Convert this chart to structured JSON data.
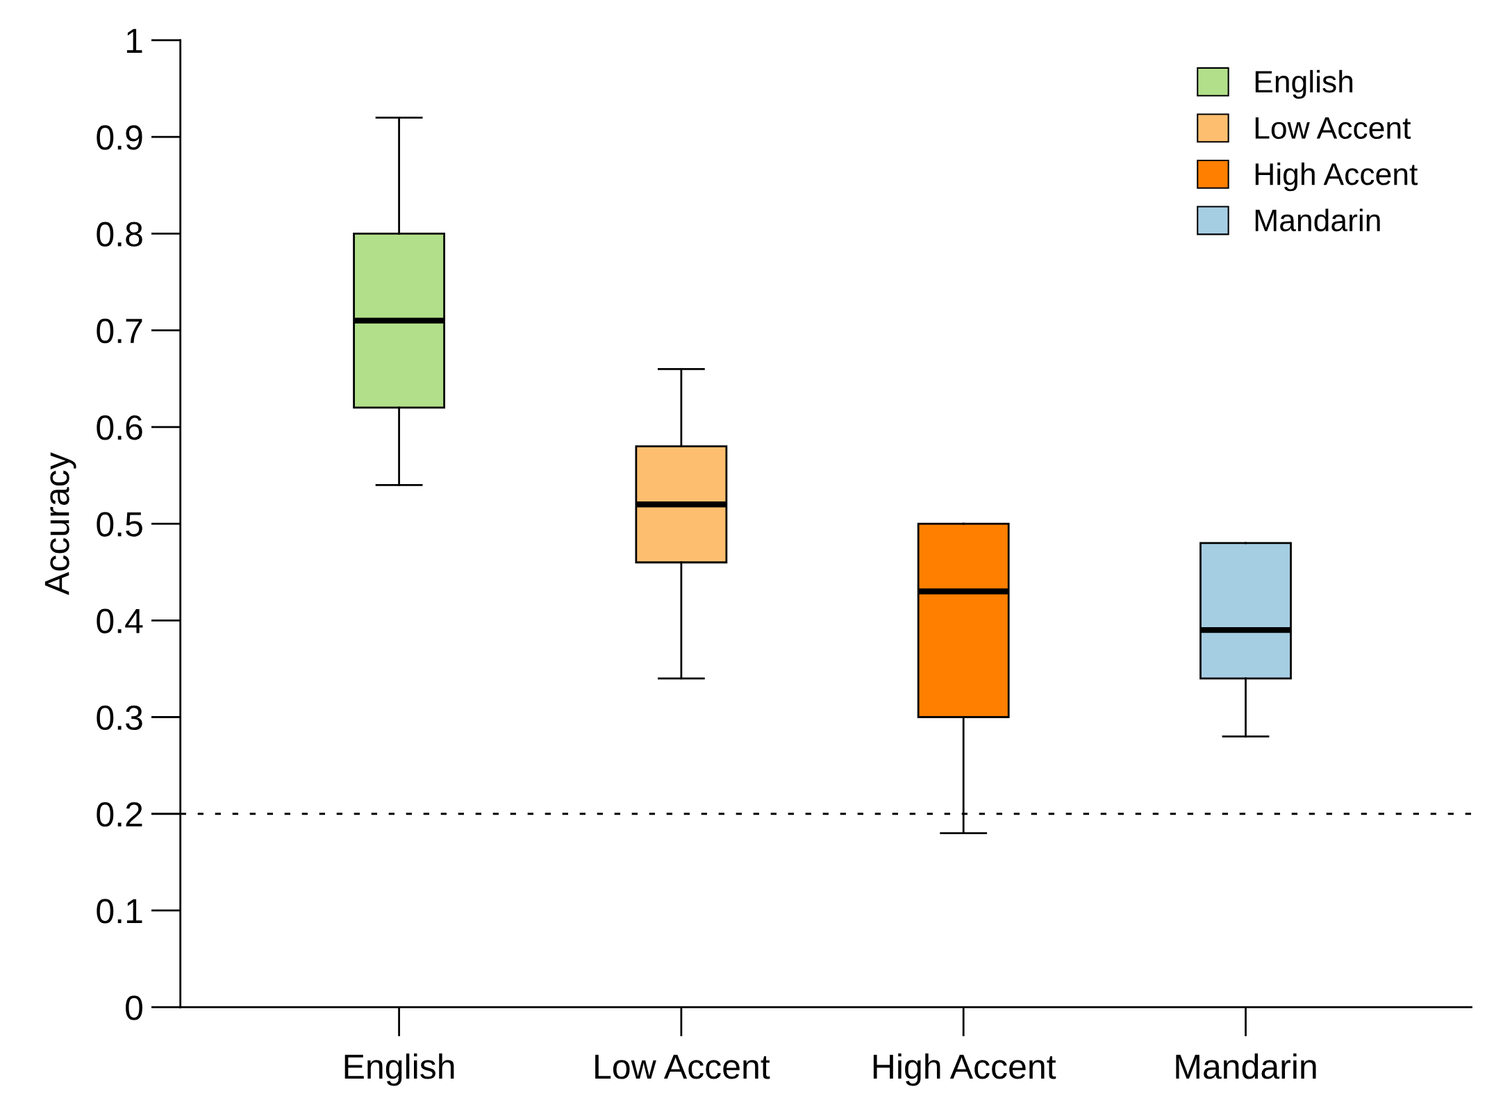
{
  "chart_data": {
    "type": "box",
    "ylabel": "Accuracy",
    "categories": [
      "English",
      "Low Accent",
      "High Accent",
      "Mandarin"
    ],
    "series": [
      {
        "name": "English",
        "color": "#b2df8a",
        "boxes": [
          {
            "low": 0.54,
            "q1": 0.62,
            "median": 0.71,
            "q3": 0.8,
            "high": 0.92
          },
          null,
          null,
          null
        ]
      },
      {
        "name": "Low Accent",
        "color": "#fdbf6f",
        "boxes": [
          null,
          {
            "low": 0.34,
            "q1": 0.46,
            "median": 0.52,
            "q3": 0.58,
            "high": 0.66
          },
          null,
          null
        ]
      },
      {
        "name": "High Accent",
        "color": "#ff7f00",
        "boxes": [
          null,
          null,
          {
            "low": 0.18,
            "q1": 0.3,
            "median": 0.43,
            "q3": 0.5,
            "high": 0.5
          },
          null
        ]
      },
      {
        "name": "Mandarin",
        "color": "#a6cee3",
        "boxes": [
          null,
          null,
          null,
          {
            "low": 0.28,
            "q1": 0.34,
            "median": 0.39,
            "q3": 0.48,
            "high": 0.48
          }
        ]
      }
    ],
    "ylim": [
      0,
      1
    ],
    "yticks": [
      0,
      0.1,
      0.2,
      0.3,
      0.4,
      0.5,
      0.6,
      0.7,
      0.8,
      0.9,
      1
    ],
    "ref_lines": [
      {
        "axis": "y",
        "value": 0.2,
        "line_style": "dotted",
        "color": "#000000"
      }
    ],
    "grid": false,
    "legend": "top right"
  }
}
